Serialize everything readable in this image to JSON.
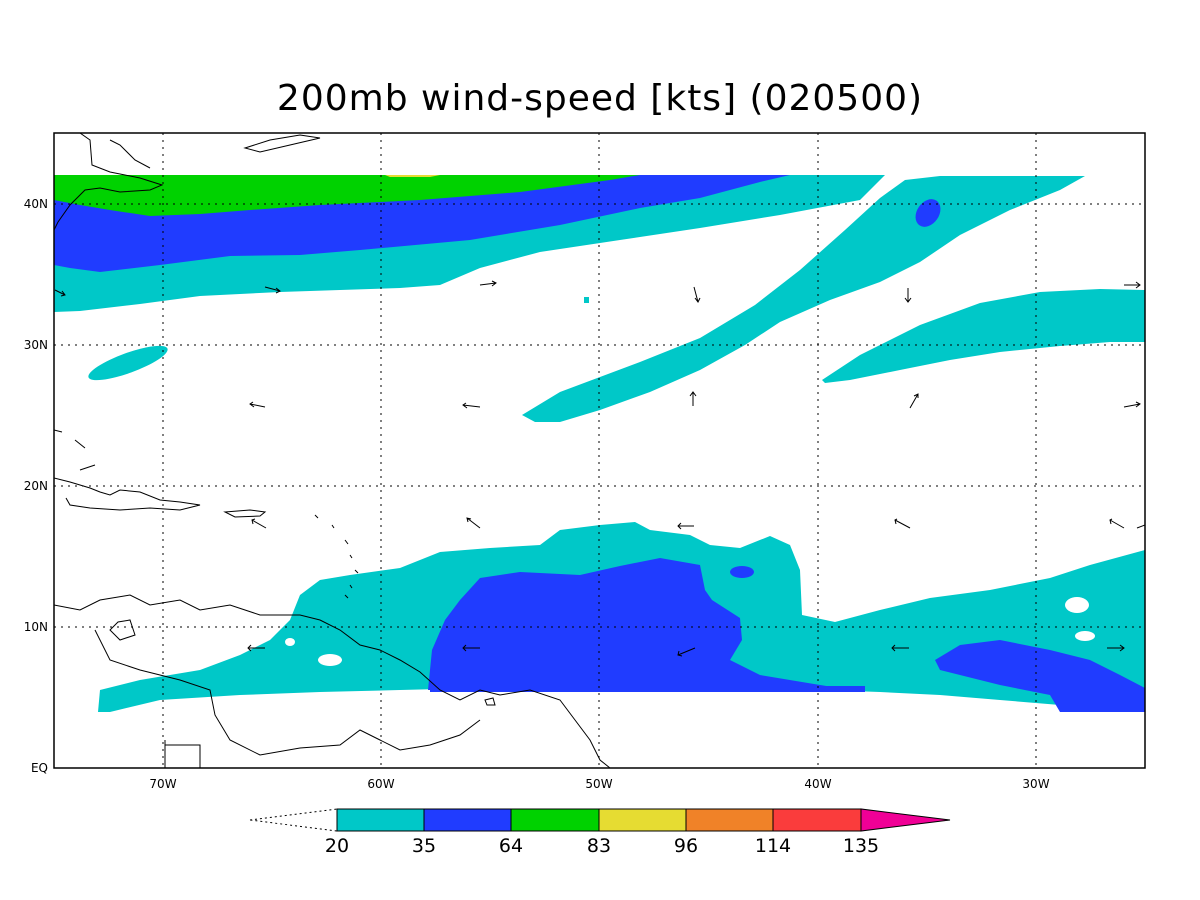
{
  "title": "200mb wind-speed [kts] (020500)",
  "lat_labels": [
    "EQ",
    "10N",
    "20N",
    "30N",
    "40N"
  ],
  "lon_labels": [
    "70W",
    "60W",
    "50W",
    "40W",
    "30W"
  ],
  "colorbar": {
    "levels": [
      "20",
      "35",
      "64",
      "83",
      "96",
      "114",
      "135"
    ],
    "colors": [
      "#00c8c8",
      "#203cff",
      "#00d200",
      "#e6dc32",
      "#f08228",
      "#fa3c3c",
      "#f00096"
    ]
  },
  "contour_colors": {
    "light": "#00c8c8",
    "medium": "#203cff",
    "strong": "#00d200",
    "yellow": "#e6dc32"
  }
}
